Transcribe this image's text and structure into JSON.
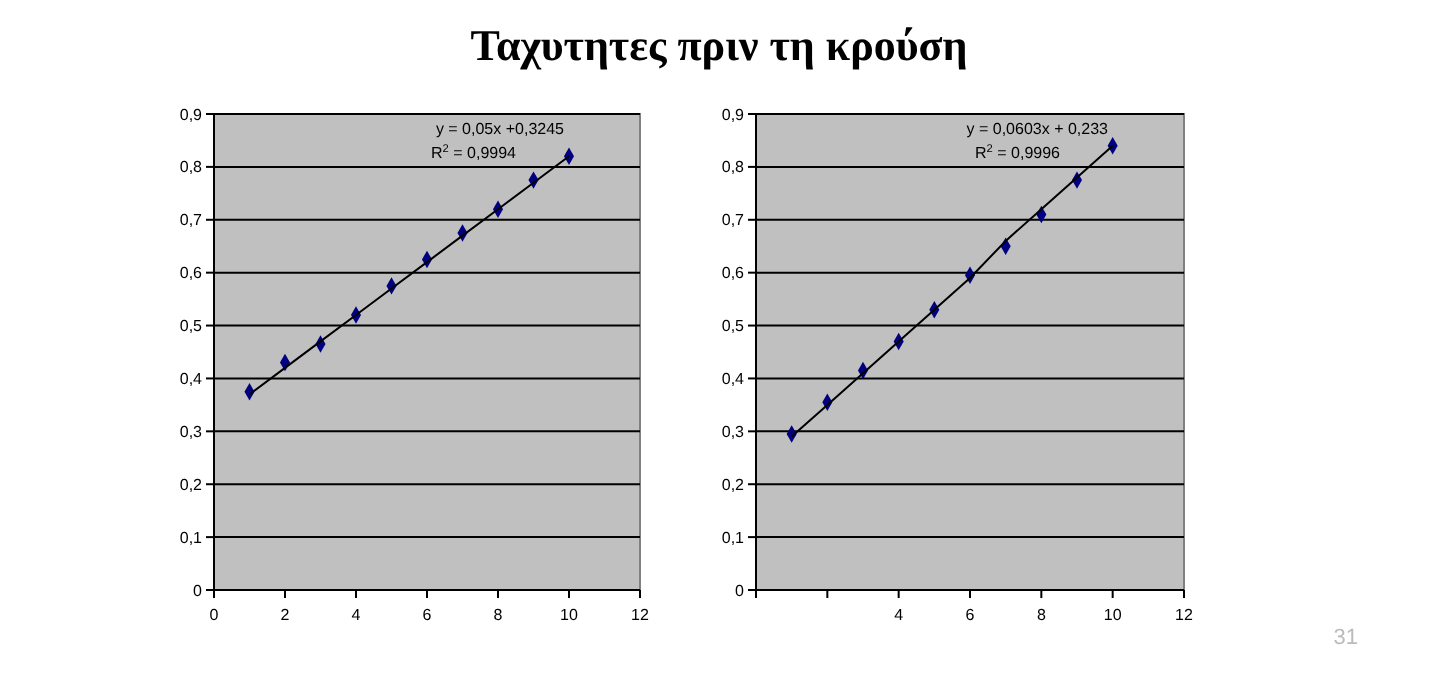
{
  "chart_data": [
    {
      "type": "scatter",
      "title": "Ταχυτητες πριν τη κρούση",
      "xlim": [
        0,
        12
      ],
      "xticks": [
        0,
        2,
        4,
        6,
        8,
        10,
        12
      ],
      "ylim": [
        0,
        0.9
      ],
      "yticks": [
        0,
        {
          "value": 0.1,
          "label": "0,1"
        },
        {
          "value": 0.2,
          "label": "0,2"
        },
        {
          "value": 0.3,
          "label": "0,3"
        },
        {
          "value": 0.4,
          "label": "0,4"
        },
        {
          "value": 0.5,
          "label": "0,5"
        },
        {
          "value": 0.6,
          "label": "0,6"
        },
        {
          "value": 0.7,
          "label": "0,7"
        },
        {
          "value": 0.8,
          "label": "0,8"
        },
        {
          "value": 0.9,
          "label": "0,9"
        }
      ],
      "grid": "y",
      "x": [
        1,
        2,
        3,
        4,
        5,
        6,
        7,
        8,
        9,
        10
      ],
      "series": [
        {
          "marker": "diamond",
          "color": "#000080",
          "values": [
            0.375,
            0.43,
            0.465,
            0.52,
            0.575,
            0.625,
            0.675,
            0.72,
            0.775,
            0.82
          ]
        },
        {
          "type": "line",
          "marker": "none",
          "color": "#000000",
          "values": [
            0.37,
            0.42,
            0.47,
            0.52,
            0.57,
            0.62,
            0.67,
            0.72,
            0.77,
            0.82
          ]
        }
      ],
      "annotations": [
        "y = 0,05x  +0,3245",
        "R$^{2}$ = 0,9994"
      ]
    },
    {
      "type": "scatter",
      "xlim": [
        0,
        12
      ],
      "xticks": [
        {
          "value": 0,
          "label": null
        },
        {
          "value": 2,
          "label": null
        },
        4,
        6,
        8,
        10,
        12
      ],
      "ylim": [
        0,
        0.9
      ],
      "yticks": [
        0,
        {
          "value": 0.1,
          "label": "0,1"
        },
        {
          "value": 0.2,
          "label": "0,2"
        },
        {
          "value": 0.3,
          "label": "0,3"
        },
        {
          "value": 0.4,
          "label": "0,4"
        },
        {
          "value": 0.5,
          "label": "0,5"
        },
        {
          "value": 0.6,
          "label": "0,6"
        },
        {
          "value": 0.7,
          "label": "0,7"
        },
        {
          "value": 0.8,
          "label": "0,8"
        },
        {
          "value": 0.9,
          "label": "0,9"
        }
      ],
      "grid": "y",
      "x": [
        1,
        2,
        3,
        4,
        5,
        6,
        7,
        8,
        9,
        10
      ],
      "series": [
        {
          "marker": "diamond",
          "color": "#000080",
          "values": [
            0.295,
            0.355,
            0.415,
            0.47,
            0.53,
            0.595,
            0.65,
            0.71,
            0.775,
            0.84
          ]
        },
        {
          "type": "line",
          "marker": "none",
          "color": "#000000",
          "values": [
            0.29,
            0.35,
            0.41,
            0.47,
            0.53,
            0.59,
            0.66,
            0.72,
            0.78,
            0.84
          ]
        }
      ],
      "annotations": [
        "y = 0,0603x + 0,233",
        "R$^{2}$ = 0,9996",
        "31"
      ]
    }
  ]
}
